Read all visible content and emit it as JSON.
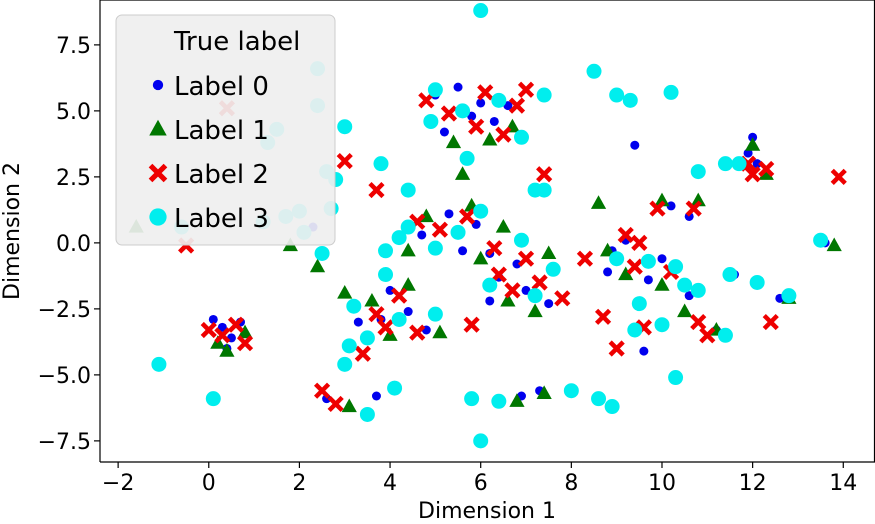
{
  "chart_data": {
    "type": "scatter",
    "title": "",
    "xlabel": "Dimension 1",
    "ylabel": "Dimension 2",
    "xlim": [
      -2.4,
      14.7
    ],
    "ylim": [
      -8.3,
      9.2
    ],
    "xticks": [
      -2,
      0,
      2,
      4,
      6,
      8,
      10,
      12,
      14
    ],
    "xtick_labels": [
      "−2",
      "0",
      "2",
      "4",
      "6",
      "8",
      "10",
      "12",
      "14"
    ],
    "yticks": [
      -7.5,
      -5.0,
      -2.5,
      0.0,
      2.5,
      5.0,
      7.5
    ],
    "ytick_labels": [
      "−7.5",
      "−5.0",
      "−2.5",
      "0.0",
      "2.5",
      "5.0",
      "7.5"
    ],
    "grid": false,
    "legend": {
      "title": "True label",
      "placement": "top-left",
      "entries": [
        "Label 0",
        "Label 1",
        "Label 2",
        "Label 3"
      ]
    },
    "series": [
      {
        "name": "Label 0",
        "marker": "circle",
        "color": "#0000ee",
        "points": [
          [
            0.3,
            -3.2
          ],
          [
            0.5,
            -3.6
          ],
          [
            0.1,
            -2.9
          ],
          [
            0.7,
            -3.0
          ],
          [
            0.4,
            -4.0
          ],
          [
            5.0,
            5.6
          ],
          [
            5.5,
            5.9
          ],
          [
            6.0,
            5.3
          ],
          [
            6.3,
            4.6
          ],
          [
            5.8,
            4.8
          ],
          [
            5.2,
            4.2
          ],
          [
            6.6,
            5.2
          ],
          [
            4.7,
            0.3
          ],
          [
            5.3,
            1.1
          ],
          [
            5.9,
            0.7
          ],
          [
            6.2,
            -0.4
          ],
          [
            6.8,
            -0.8
          ],
          [
            7.0,
            -1.8
          ],
          [
            7.5,
            -2.3
          ],
          [
            6.4,
            -1.3
          ],
          [
            4.0,
            -1.8
          ],
          [
            4.4,
            -2.6
          ],
          [
            3.8,
            -2.9
          ],
          [
            4.8,
            -3.3
          ],
          [
            3.3,
            -3.0
          ],
          [
            3.7,
            -5.8
          ],
          [
            2.6,
            -5.9
          ],
          [
            6.9,
            -5.8
          ],
          [
            7.3,
            -5.6
          ],
          [
            8.9,
            -6.3
          ],
          [
            9.2,
            0.1
          ],
          [
            8.9,
            -0.3
          ],
          [
            9.7,
            -1.4
          ],
          [
            10.2,
            1.4
          ],
          [
            10.6,
            1.0
          ],
          [
            10.3,
            -0.8
          ],
          [
            10.6,
            -2.0
          ],
          [
            11.6,
            -1.2
          ],
          [
            12.1,
            3.0
          ],
          [
            11.9,
            3.4
          ],
          [
            12.0,
            4.0
          ],
          [
            8.5,
            6.5
          ],
          [
            9.4,
            3.7
          ],
          [
            0.1,
            -5.9
          ],
          [
            2.3,
            0.6
          ],
          [
            1.7,
            1.0
          ],
          [
            6.2,
            -2.2
          ],
          [
            5.6,
            -0.3
          ],
          [
            8.8,
            -1.1
          ],
          [
            10.0,
            -0.6
          ],
          [
            12.6,
            -2.1
          ],
          [
            13.6,
            0.0
          ],
          [
            11.2,
            -3.3
          ],
          [
            9.6,
            -4.1
          ]
        ]
      },
      {
        "name": "Label 1",
        "marker": "triangle",
        "color": "#007700",
        "points": [
          [
            0.4,
            -4.1
          ],
          [
            0.8,
            -3.4
          ],
          [
            0.2,
            -3.8
          ],
          [
            5.4,
            3.8
          ],
          [
            6.2,
            3.9
          ],
          [
            6.7,
            4.4
          ],
          [
            5.6,
            2.6
          ],
          [
            4.8,
            1.0
          ],
          [
            5.8,
            1.4
          ],
          [
            6.5,
            0.6
          ],
          [
            6.6,
            -2.2
          ],
          [
            7.2,
            -2.6
          ],
          [
            6.0,
            -0.6
          ],
          [
            4.4,
            -1.6
          ],
          [
            3.0,
            -1.9
          ],
          [
            3.6,
            -2.2
          ],
          [
            4.0,
            -3.5
          ],
          [
            5.1,
            -3.4
          ],
          [
            3.1,
            -6.2
          ],
          [
            6.8,
            -6.0
          ],
          [
            7.4,
            -5.7
          ],
          [
            8.6,
            1.5
          ],
          [
            8.8,
            -0.3
          ],
          [
            10.0,
            1.6
          ],
          [
            10.8,
            1.6
          ],
          [
            10.0,
            -1.6
          ],
          [
            10.5,
            -2.6
          ],
          [
            11.2,
            -3.3
          ],
          [
            12.0,
            3.7
          ],
          [
            12.3,
            2.6
          ],
          [
            13.8,
            -0.1
          ],
          [
            12.8,
            -2.1
          ],
          [
            1.8,
            -0.1
          ],
          [
            2.4,
            -0.9
          ],
          [
            -1.6,
            0.6
          ],
          [
            4.4,
            -0.3
          ],
          [
            7.5,
            -0.4
          ],
          [
            9.2,
            -1.2
          ]
        ]
      },
      {
        "name": "Label 2",
        "marker": "x",
        "color": "#ee0000",
        "points": [
          [
            0.3,
            -3.5
          ],
          [
            0.6,
            -3.1
          ],
          [
            0.0,
            -3.3
          ],
          [
            0.8,
            -3.8
          ],
          [
            4.8,
            5.4
          ],
          [
            5.3,
            4.9
          ],
          [
            6.1,
            5.7
          ],
          [
            6.5,
            4.1
          ],
          [
            7.0,
            5.8
          ],
          [
            5.9,
            4.4
          ],
          [
            4.6,
            0.8
          ],
          [
            5.1,
            0.5
          ],
          [
            5.7,
            1.0
          ],
          [
            6.3,
            -0.2
          ],
          [
            7.0,
            -0.6
          ],
          [
            7.3,
            -1.5
          ],
          [
            6.7,
            -1.8
          ],
          [
            7.8,
            -2.1
          ],
          [
            4.2,
            -2.0
          ],
          [
            3.7,
            -2.7
          ],
          [
            4.6,
            -3.4
          ],
          [
            3.9,
            -3.2
          ],
          [
            3.0,
            3.1
          ],
          [
            3.7,
            2.0
          ],
          [
            3.4,
            -4.2
          ],
          [
            2.5,
            -5.6
          ],
          [
            2.8,
            -6.1
          ],
          [
            0.4,
            5.1
          ],
          [
            -0.5,
            -0.1
          ],
          [
            8.7,
            -2.8
          ],
          [
            9.2,
            0.3
          ],
          [
            9.5,
            0.0
          ],
          [
            9.9,
            1.3
          ],
          [
            10.7,
            1.3
          ],
          [
            9.4,
            -0.9
          ],
          [
            10.2,
            -1.1
          ],
          [
            10.8,
            -3.0
          ],
          [
            9.6,
            -3.2
          ],
          [
            9.0,
            -4.0
          ],
          [
            12.0,
            2.6
          ],
          [
            11.9,
            3.0
          ],
          [
            12.3,
            2.8
          ],
          [
            13.9,
            2.5
          ],
          [
            12.4,
            -3.0
          ],
          [
            11.0,
            -3.5
          ],
          [
            7.4,
            2.6
          ],
          [
            6.8,
            5.2
          ],
          [
            5.8,
            -3.1
          ],
          [
            8.3,
            -0.6
          ],
          [
            6.4,
            -1.2
          ]
        ]
      },
      {
        "name": "Label 3",
        "marker": "circle-large",
        "color": "#00eeee",
        "points": [
          [
            2.4,
            6.6
          ],
          [
            2.4,
            5.2
          ],
          [
            3.0,
            4.4
          ],
          [
            3.8,
            3.0
          ],
          [
            6.0,
            8.8
          ],
          [
            5.0,
            5.8
          ],
          [
            5.6,
            5.0
          ],
          [
            6.4,
            5.4
          ],
          [
            7.4,
            5.6
          ],
          [
            4.9,
            4.6
          ],
          [
            5.7,
            3.2
          ],
          [
            6.9,
            4.0
          ],
          [
            4.4,
            0.6
          ],
          [
            5.0,
            -0.2
          ],
          [
            5.5,
            0.4
          ],
          [
            6.0,
            1.2
          ],
          [
            6.9,
            0.1
          ],
          [
            7.6,
            -1.0
          ],
          [
            7.2,
            -2.0
          ],
          [
            6.2,
            -1.6
          ],
          [
            3.9,
            -1.2
          ],
          [
            3.2,
            -2.4
          ],
          [
            4.2,
            -2.9
          ],
          [
            5.0,
            -2.7
          ],
          [
            3.5,
            -3.6
          ],
          [
            3.1,
            -3.9
          ],
          [
            3.0,
            -4.6
          ],
          [
            3.5,
            -6.5
          ],
          [
            6.0,
            -7.5
          ],
          [
            5.8,
            -5.9
          ],
          [
            6.4,
            -6.0
          ],
          [
            8.0,
            -5.6
          ],
          [
            8.6,
            -5.9
          ],
          [
            8.9,
            -6.2
          ],
          [
            9.3,
            5.4
          ],
          [
            10.2,
            5.7
          ],
          [
            9.0,
            5.6
          ],
          [
            8.5,
            6.5
          ],
          [
            10.8,
            2.7
          ],
          [
            11.4,
            3.0
          ],
          [
            11.7,
            3.0
          ],
          [
            7.2,
            2.0
          ],
          [
            4.4,
            2.0
          ],
          [
            4.2,
            0.2
          ],
          [
            3.9,
            -0.3
          ],
          [
            9.0,
            -0.6
          ],
          [
            9.7,
            -0.7
          ],
          [
            10.3,
            -0.9
          ],
          [
            10.5,
            -1.6
          ],
          [
            9.5,
            -2.3
          ],
          [
            9.4,
            -3.3
          ],
          [
            10.0,
            -3.1
          ],
          [
            10.8,
            -1.8
          ],
          [
            11.4,
            -3.5
          ],
          [
            10.3,
            -5.1
          ],
          [
            12.8,
            -2.0
          ],
          [
            13.5,
            0.1
          ],
          [
            -1.1,
            -4.6
          ],
          [
            0.1,
            -5.9
          ],
          [
            1.7,
            1.0
          ],
          [
            2.0,
            1.2
          ],
          [
            2.7,
            1.3
          ],
          [
            1.5,
            4.3
          ],
          [
            1.3,
            3.8
          ],
          [
            -0.6,
            0.6
          ],
          [
            2.6,
            2.7
          ],
          [
            2.8,
            2.4
          ],
          [
            4.1,
            -5.5
          ],
          [
            7.4,
            2.0
          ],
          [
            11.5,
            -1.2
          ],
          [
            12.1,
            -1.5
          ],
          [
            2.1,
            0.4
          ],
          [
            1.2,
            0.8
          ],
          [
            2.5,
            -0.4
          ]
        ]
      }
    ]
  }
}
